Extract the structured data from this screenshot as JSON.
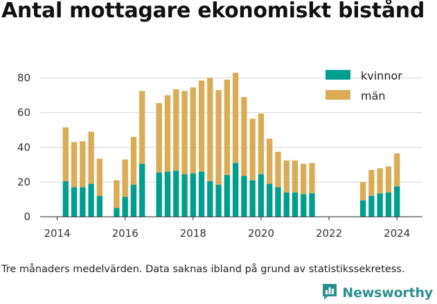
{
  "header": {
    "title": "Antal mottagare ekonomiskt bistånd"
  },
  "footer": {
    "note": "Tre månaders medelvärden. Data saknas ibland på grund av statistikssekretess.",
    "brand": "Newsworthy",
    "logo_icon": "bar-chart-speech-bubble-icon"
  },
  "colors": {
    "kvinnor": "#009e8f",
    "man": "#d9ac55",
    "grid": "#d6d6d6",
    "brand": "#2a8f8f"
  },
  "chart_data": {
    "type": "bar",
    "stacked": true,
    "title": "Antal mottagare ekonomiskt bistånd",
    "xlabel": "",
    "ylabel": "",
    "grid": true,
    "legend_position": "top-right",
    "x_ticks": [
      "2014",
      "2016",
      "2018",
      "2020",
      "2022",
      "2024"
    ],
    "y_ticks": [
      "0",
      "20",
      "40",
      "60",
      "80"
    ],
    "xlim": [
      2013.5,
      2024.75
    ],
    "ylim": [
      0,
      85
    ],
    "x": [
      2014.25,
      2014.5,
      2014.75,
      2015.0,
      2015.25,
      2015.75,
      2016.0,
      2016.25,
      2016.5,
      2017.0,
      2017.25,
      2017.5,
      2017.75,
      2018.0,
      2018.25,
      2018.5,
      2018.75,
      2019.0,
      2019.25,
      2019.5,
      2019.75,
      2020.0,
      2020.25,
      2020.5,
      2020.75,
      2021.0,
      2021.25,
      2021.5,
      2023.0,
      2023.25,
      2023.5,
      2023.75,
      2024.0
    ],
    "series": [
      {
        "name": "kvinnor",
        "values": [
          20.5,
          17,
          17,
          19,
          12,
          5,
          11.5,
          18.5,
          30.5,
          25.5,
          26,
          26.5,
          24.5,
          25,
          26,
          20.5,
          18.5,
          24,
          31,
          23.5,
          21,
          24.5,
          19,
          17,
          14,
          14,
          13,
          13.5,
          9.5,
          12,
          13.5,
          14,
          17.5
        ]
      },
      {
        "name": "män",
        "values": [
          31,
          26,
          26.5,
          30,
          21.5,
          16,
          21.5,
          27.5,
          42,
          40,
          44,
          47,
          48,
          49.5,
          52.5,
          59.5,
          54.5,
          55,
          52,
          45.5,
          35.5,
          35,
          26,
          20.5,
          18.5,
          18.5,
          17.5,
          17.5,
          10.5,
          15,
          14.5,
          15,
          19
        ]
      }
    ]
  }
}
